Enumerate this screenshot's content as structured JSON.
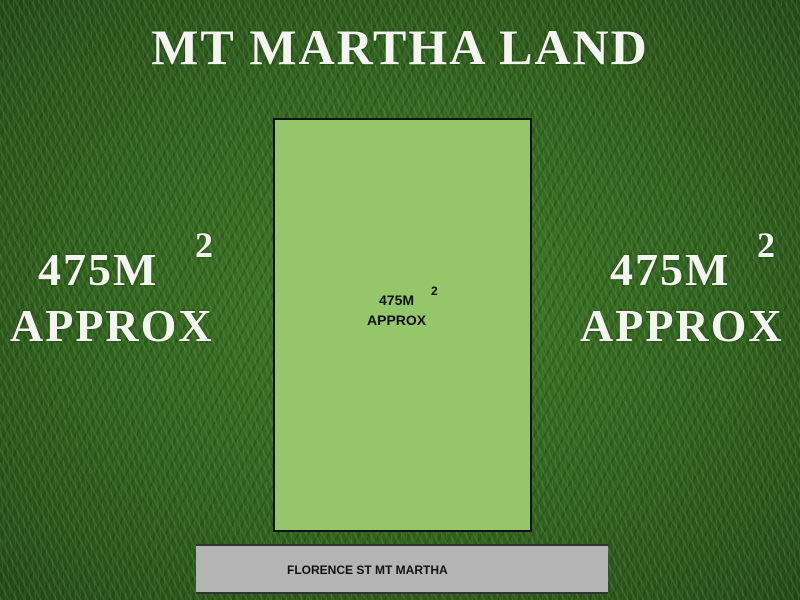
{
  "title": "MT MARTHA LAND",
  "left_label": {
    "area": "475M",
    "superscript": "2",
    "qualifier": "APPROX"
  },
  "right_label": {
    "area": "475M",
    "superscript": "2",
    "qualifier": "APPROX"
  },
  "lot": {
    "area": "475M",
    "superscript": "2",
    "qualifier": "APPROX",
    "fill_color": "#95c66a"
  },
  "street": {
    "name": "FLORENCE ST MT MARTHA",
    "color": "#b4b4b4"
  }
}
